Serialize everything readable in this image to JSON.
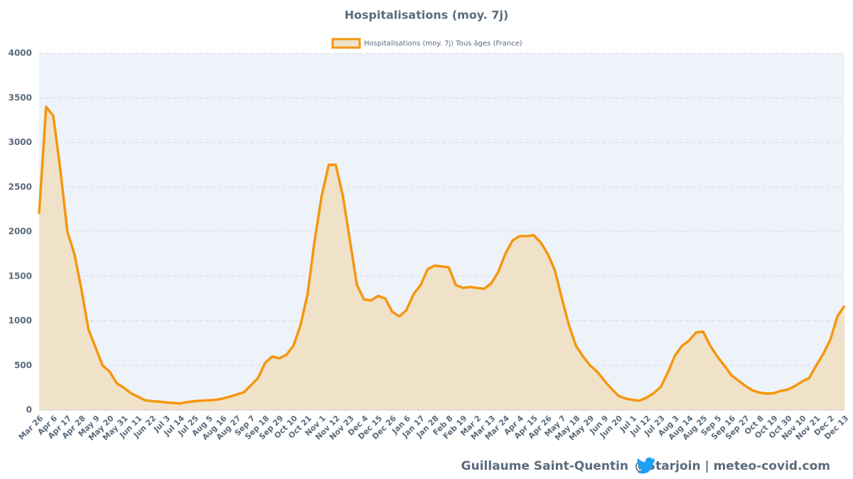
{
  "chart_data": {
    "type": "line",
    "title": "Hospitalisations (moy. 7j)",
    "categories": [
      "Mar 26",
      null,
      "Apr 6",
      null,
      "Apr 17",
      null,
      "Apr 28",
      null,
      "May 9",
      null,
      "May 20",
      null,
      "May 31",
      null,
      "Jun 11",
      null,
      "Jun 22",
      null,
      "Jul 3",
      null,
      "Jul 14",
      null,
      "Jul 25",
      null,
      "Aug 5",
      null,
      "Aug 16",
      null,
      "Aug 27",
      null,
      "Sep 7",
      null,
      "Sep 18",
      null,
      "Sep 29",
      null,
      "Oct 10",
      null,
      "Oct 21",
      null,
      "Nov 1",
      null,
      "Nov 12",
      null,
      "Nov 23",
      null,
      "Dec 4",
      null,
      "Dec 15",
      null,
      "Dec 26",
      null,
      "Jan 6",
      null,
      "Jan 17",
      null,
      "Jan 28",
      null,
      "Feb 8",
      null,
      "Feb 19",
      null,
      "Mar 2",
      null,
      "Mar 13",
      null,
      "Mar 24",
      null,
      "Apr 4",
      null,
      "Apr 15",
      null,
      "Apr 26",
      null,
      "May 7",
      null,
      "May 18",
      null,
      "May 29",
      null,
      "Jun 9",
      null,
      "Jun 20",
      null,
      "Jul 1",
      null,
      "Jul 12",
      null,
      "Jul 23",
      null,
      "Aug 3",
      null,
      "Aug 14",
      null,
      "Aug 25",
      null,
      "Sep 5",
      null,
      "Sep 16",
      null,
      "Sep 27",
      null,
      "Oct 8",
      null,
      "Oct 19",
      null,
      "Oct 30",
      null,
      "Nov 10",
      null,
      "Nov 21",
      null,
      "Dec 2",
      null,
      "Dec 13"
    ],
    "series": [
      {
        "name": "Hospitalisations (moy. 7j) Tous âges (France)",
        "color": "#f5960f",
        "fill": "#f0e2c8",
        "values": [
          2200,
          3400,
          3300,
          2700,
          2000,
          1750,
          1350,
          900,
          700,
          500,
          430,
          300,
          250,
          190,
          150,
          110,
          100,
          95,
          85,
          80,
          75,
          90,
          100,
          105,
          110,
          115,
          130,
          150,
          175,
          200,
          280,
          360,
          530,
          600,
          580,
          620,
          720,
          950,
          1300,
          1900,
          2400,
          2750,
          2750,
          2400,
          1900,
          1400,
          1240,
          1230,
          1280,
          1250,
          1100,
          1050,
          1120,
          1300,
          1400,
          1580,
          1620,
          1610,
          1600,
          1400,
          1370,
          1380,
          1370,
          1360,
          1420,
          1550,
          1750,
          1900,
          1950,
          1950,
          1960,
          1880,
          1750,
          1570,
          1250,
          950,
          720,
          600,
          500,
          430,
          330,
          240,
          160,
          130,
          115,
          105,
          140,
          190,
          260,
          420,
          610,
          720,
          780,
          870,
          880,
          720,
          600,
          500,
          390,
          330,
          270,
          220,
          195,
          185,
          190,
          215,
          230,
          270,
          320,
          360,
          500,
          630,
          790,
          1050,
          1170
        ]
      }
    ],
    "ylim": [
      0,
      4000
    ],
    "yticks": [
      0,
      500,
      1000,
      1500,
      2000,
      2500,
      3000,
      3500,
      4000
    ],
    "grid": true,
    "legend": "top"
  },
  "footer": {
    "author": "Guillaume Saint-Quentin",
    "credit": "@Starjoin | meteo-covid.com"
  }
}
